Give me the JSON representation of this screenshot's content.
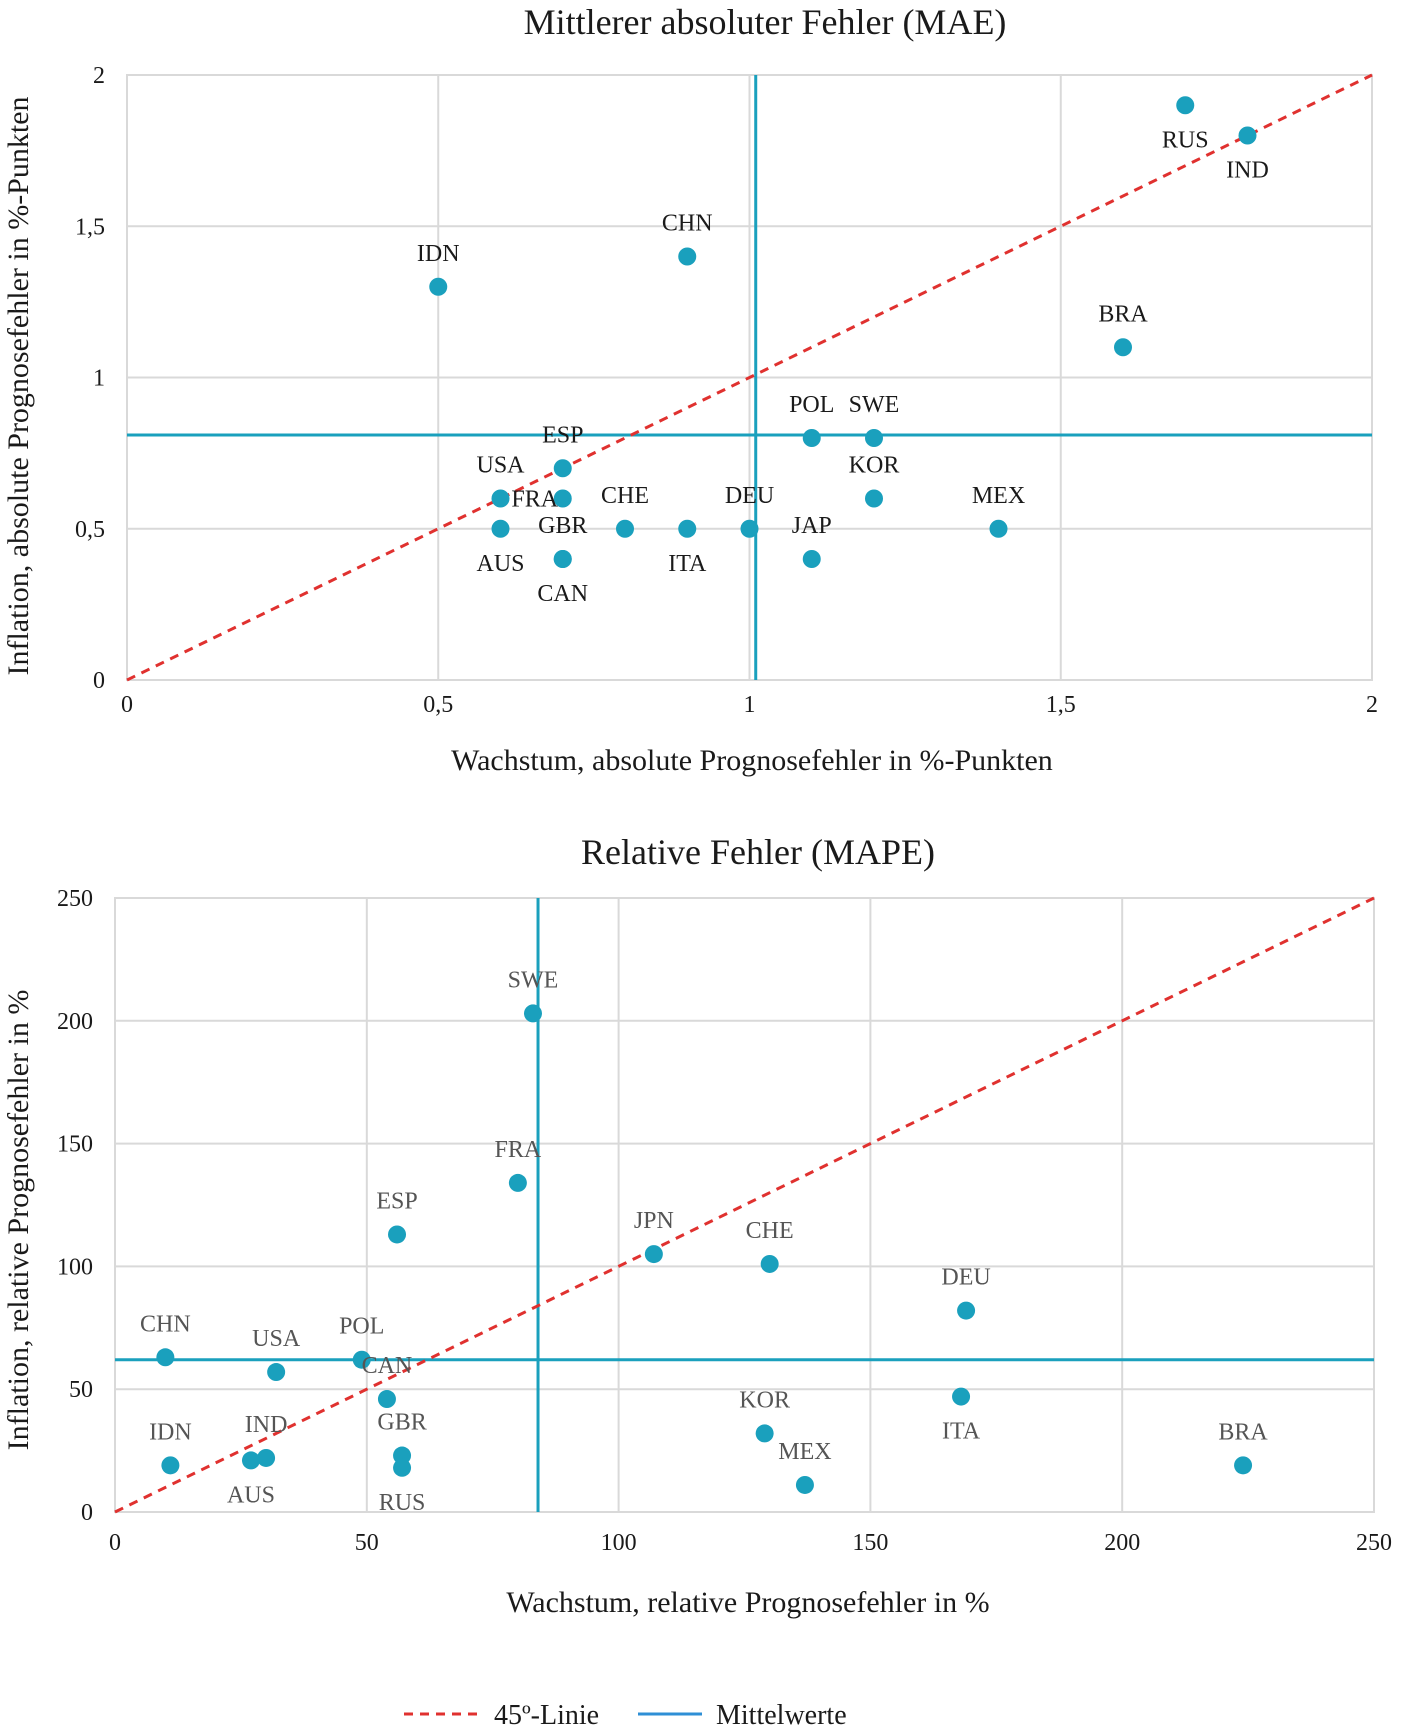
{
  "colors": {
    "points": "#1aa0bd",
    "mean_lines": "#1aa0bd",
    "diagonal": "#e0312f",
    "legend_mean": "#2e8fd6"
  },
  "chart_data": [
    {
      "type": "scatter",
      "title": "Mittlerer absoluter Fehler (MAE)",
      "xlabel": "Wachstum, absolute Prognosefehler in %-Punkten",
      "ylabel": "Inflation, absolute Prognosefehler in %-Punkten",
      "xlim": [
        0,
        2
      ],
      "ylim": [
        0,
        2
      ],
      "xticks": [
        0,
        0.5,
        1,
        1.5,
        2
      ],
      "yticks": [
        0,
        0.5,
        1,
        1.5,
        2
      ],
      "xtick_labels": [
        "0",
        "0,5",
        "1",
        "1,5",
        "2"
      ],
      "ytick_labels": [
        "0",
        "0,5",
        "1",
        "1,5",
        "2"
      ],
      "mean_x": 1.01,
      "mean_y": 0.81,
      "points": [
        {
          "label": "RUS",
          "x": 1.7,
          "y": 1.9,
          "pos": "below"
        },
        {
          "label": "IND",
          "x": 1.8,
          "y": 1.8,
          "pos": "below"
        },
        {
          "label": "CHN",
          "x": 0.9,
          "y": 1.4,
          "pos": "above"
        },
        {
          "label": "IDN",
          "x": 0.5,
          "y": 1.3,
          "pos": "above"
        },
        {
          "label": "BRA",
          "x": 1.6,
          "y": 1.1,
          "pos": "above"
        },
        {
          "label": "POL",
          "x": 1.1,
          "y": 0.8,
          "pos": "above"
        },
        {
          "label": "SWE",
          "x": 1.2,
          "y": 0.8,
          "pos": "above"
        },
        {
          "label": "ESP",
          "x": 0.7,
          "y": 0.7,
          "pos": "above"
        },
        {
          "label": "USA",
          "x": 0.6,
          "y": 0.6,
          "pos": "above"
        },
        {
          "label": "FRA",
          "x": 0.7,
          "y": 0.6,
          "pos": "left"
        },
        {
          "label": "KOR",
          "x": 1.2,
          "y": 0.6,
          "pos": "above"
        },
        {
          "label": "AUS",
          "x": 0.6,
          "y": 0.5,
          "pos": "below"
        },
        {
          "label": "CHE",
          "x": 0.8,
          "y": 0.5,
          "pos": "above"
        },
        {
          "label": "ITA",
          "x": 0.9,
          "y": 0.5,
          "pos": "below"
        },
        {
          "label": "DEU",
          "x": 1.0,
          "y": 0.5,
          "pos": "above"
        },
        {
          "label": "MEX",
          "x": 1.4,
          "y": 0.5,
          "pos": "above"
        },
        {
          "label": "GBR",
          "x": 0.7,
          "y": 0.4,
          "pos": "above"
        },
        {
          "label": "CAN",
          "x": 0.7,
          "y": 0.4,
          "pos": "below"
        },
        {
          "label": "JAP",
          "x": 1.1,
          "y": 0.4,
          "pos": "above"
        }
      ]
    },
    {
      "type": "scatter",
      "title": "Relative Fehler (MAPE)",
      "xlabel": "Wachstum, relative Prognosefehler in %",
      "ylabel": "Inflation, relative Prognosefehler in %",
      "xlim": [
        0,
        250
      ],
      "ylim": [
        0,
        250
      ],
      "xticks": [
        0,
        50,
        100,
        150,
        200,
        250
      ],
      "yticks": [
        0,
        50,
        100,
        150,
        200,
        250
      ],
      "xtick_labels": [
        "0",
        "50",
        "100",
        "150",
        "200",
        "250"
      ],
      "ytick_labels": [
        "0",
        "50",
        "100",
        "150",
        "200",
        "250"
      ],
      "mean_x": 84,
      "mean_y": 62,
      "points": [
        {
          "label": "SWE",
          "x": 83,
          "y": 203,
          "pos": "above"
        },
        {
          "label": "FRA",
          "x": 80,
          "y": 134,
          "pos": "above"
        },
        {
          "label": "ESP",
          "x": 56,
          "y": 113,
          "pos": "above"
        },
        {
          "label": "JPN",
          "x": 107,
          "y": 105,
          "pos": "above"
        },
        {
          "label": "CHE",
          "x": 130,
          "y": 101,
          "pos": "above"
        },
        {
          "label": "DEU",
          "x": 169,
          "y": 82,
          "pos": "above"
        },
        {
          "label": "CHN",
          "x": 10,
          "y": 63,
          "pos": "above"
        },
        {
          "label": "POL",
          "x": 49,
          "y": 62,
          "pos": "above"
        },
        {
          "label": "USA",
          "x": 32,
          "y": 57,
          "pos": "above"
        },
        {
          "label": "CAN",
          "x": 54,
          "y": 46,
          "pos": "above"
        },
        {
          "label": "ITA",
          "x": 168,
          "y": 47,
          "pos": "below"
        },
        {
          "label": "KOR",
          "x": 129,
          "y": 32,
          "pos": "above"
        },
        {
          "label": "GBR",
          "x": 57,
          "y": 23,
          "pos": "above"
        },
        {
          "label": "IND",
          "x": 30,
          "y": 22,
          "pos": "above"
        },
        {
          "label": "AUS",
          "x": 27,
          "y": 21,
          "pos": "below"
        },
        {
          "label": "IDN",
          "x": 11,
          "y": 19,
          "pos": "above"
        },
        {
          "label": "BRA",
          "x": 224,
          "y": 19,
          "pos": "above"
        },
        {
          "label": "RUS",
          "x": 57,
          "y": 18,
          "pos": "below"
        },
        {
          "label": "MEX",
          "x": 137,
          "y": 11,
          "pos": "above"
        }
      ]
    }
  ],
  "legend": {
    "diagonal_label": "45º-Linie",
    "mean_label": "Mittelwerte"
  }
}
